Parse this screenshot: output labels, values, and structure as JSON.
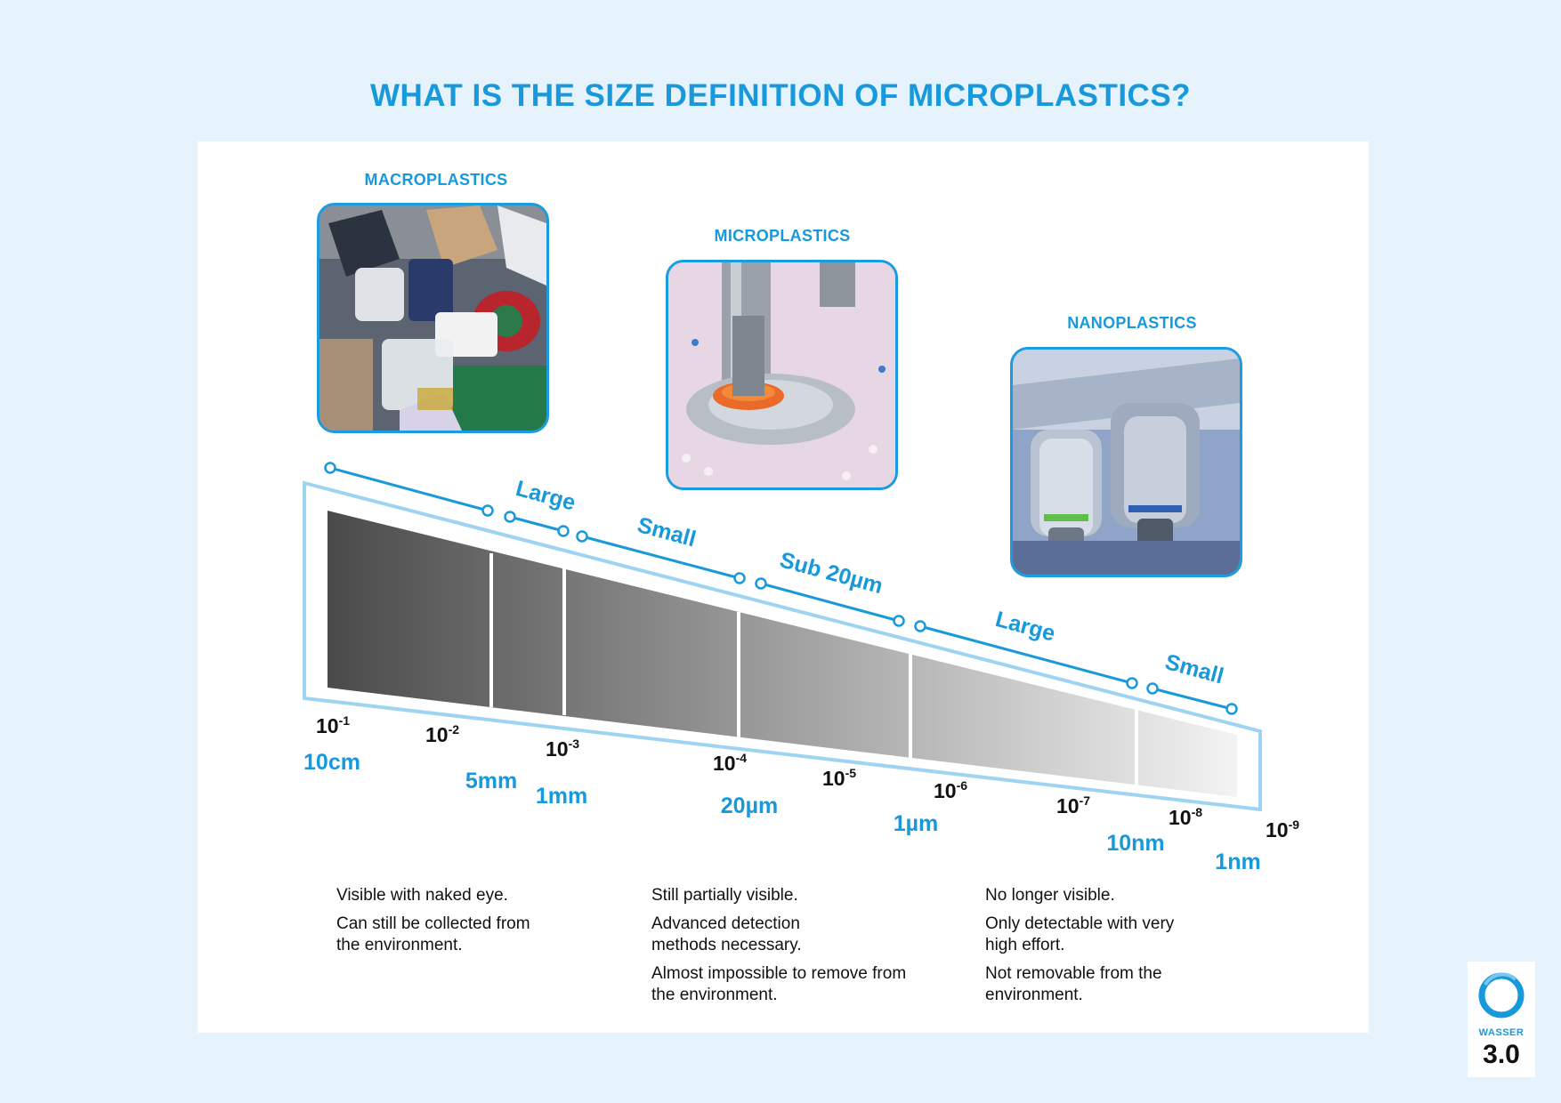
{
  "title": "WHAT IS THE SIZE DEFINITION OF MICROPLASTICS?",
  "categories": [
    {
      "label": "MACROPLASTICS",
      "image": "plastic-waste-pile"
    },
    {
      "label": "MICROPLASTICS",
      "image": "plastic-granulate-machine"
    },
    {
      "label": "NANOPLASTICS",
      "image": "microscope-objectives"
    }
  ],
  "segments": [
    "Large",
    "Small",
    "Sub 20µm",
    "Large",
    "Small"
  ],
  "exponents": [
    {
      "base": "10",
      "exp": "-1"
    },
    {
      "base": "10",
      "exp": "-2"
    },
    {
      "base": "10",
      "exp": "-3"
    },
    {
      "base": "10",
      "exp": "-4"
    },
    {
      "base": "10",
      "exp": "-5"
    },
    {
      "base": "10",
      "exp": "-6"
    },
    {
      "base": "10",
      "exp": "-7"
    },
    {
      "base": "10",
      "exp": "-8"
    },
    {
      "base": "10",
      "exp": "-9"
    }
  ],
  "sizes": [
    "10cm",
    "5mm",
    "1mm",
    "20µm",
    "1µm",
    "10nm",
    "1nm"
  ],
  "descriptions": [
    [
      "Visible with naked eye.",
      "Can still be collected from the environment."
    ],
    [
      "Still partially visible.",
      "Advanced detection methods necessary.",
      "Almost impossible to remove from the environment."
    ],
    [
      "No longer visible.",
      "Only detectable with very high effort.",
      "Not removable from the environment."
    ]
  ],
  "logo": {
    "word": "WASSER",
    "number": "3.0"
  },
  "colors": {
    "accent": "#1799dc",
    "background": "#e6f3fc",
    "panel": "#ffffff",
    "frame": "#9fd3f2"
  }
}
